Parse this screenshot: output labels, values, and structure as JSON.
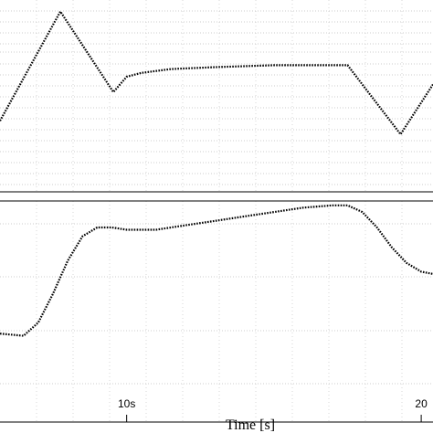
{
  "chart_data": {
    "type": "line",
    "xlabel": "Time [s]",
    "x_ticks": [
      {
        "value": 10,
        "label": "10s"
      },
      {
        "value": 20,
        "label": "20"
      }
    ],
    "xlim": [
      5.7,
      20.4
    ],
    "grid": true,
    "colors": {
      "line": "#000000",
      "grid": "#bdbdbd",
      "frame": "#000000"
    },
    "panels": [
      {
        "name": "",
        "ylim": [
          0,
          1
        ],
        "series": [
          {
            "name": "",
            "points": [
              [
                5.7,
                0.37
              ],
              [
                7.75,
                0.94
              ],
              [
                9.55,
                0.52
              ],
              [
                10.0,
                0.6
              ],
              [
                10.5,
                0.62
              ],
              [
                11.5,
                0.64
              ],
              [
                13.0,
                0.65
              ],
              [
                15.0,
                0.66
              ],
              [
                17.5,
                0.66
              ],
              [
                19.3,
                0.3
              ],
              [
                20.4,
                0.56
              ]
            ]
          }
        ]
      },
      {
        "name": "",
        "ylim": [
          0,
          1
        ],
        "series": [
          {
            "name": "",
            "points": [
              [
                5.7,
                0.4
              ],
              [
                6.5,
                0.39
              ],
              [
                7.0,
                0.45
              ],
              [
                7.5,
                0.58
              ],
              [
                8.0,
                0.73
              ],
              [
                8.5,
                0.84
              ],
              [
                9.0,
                0.88
              ],
              [
                9.5,
                0.88
              ],
              [
                10.0,
                0.87
              ],
              [
                11.0,
                0.87
              ],
              [
                12.0,
                0.89
              ],
              [
                13.0,
                0.91
              ],
              [
                14.0,
                0.93
              ],
              [
                15.0,
                0.95
              ],
              [
                16.0,
                0.97
              ],
              [
                17.0,
                0.98
              ],
              [
                17.5,
                0.98
              ],
              [
                18.0,
                0.95
              ],
              [
                18.5,
                0.88
              ],
              [
                19.0,
                0.79
              ],
              [
                19.5,
                0.72
              ],
              [
                20.0,
                0.68
              ],
              [
                20.4,
                0.67
              ]
            ]
          }
        ]
      }
    ]
  }
}
